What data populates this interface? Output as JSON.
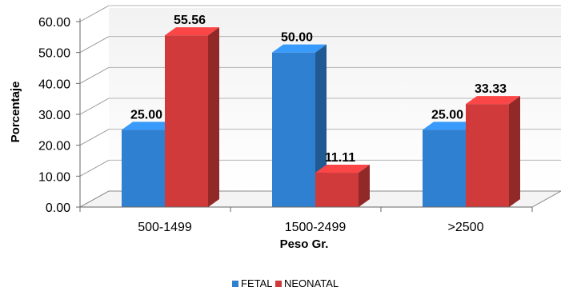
{
  "chart_data": {
    "type": "bar",
    "three_d": true,
    "categories": [
      "500-1499",
      "1500-2499",
      ">2500"
    ],
    "series": [
      {
        "name": "FETAL",
        "values": [
          25.0,
          50.0,
          25.0
        ],
        "labels": [
          "25.00",
          "50.00",
          "25.00"
        ],
        "color": "#2f80d0"
      },
      {
        "name": "NEONATAL",
        "values": [
          55.56,
          11.11,
          33.33
        ],
        "labels": [
          "55.56",
          "11.11",
          "33.33"
        ],
        "color": "#d03a3a"
      }
    ],
    "ylim": [
      0,
      60
    ],
    "yticks": [
      "0.00",
      "10.00",
      "20.00",
      "30.00",
      "40.00",
      "50.00",
      "60.00"
    ],
    "xlabel": "Peso Gr.",
    "ylabel": "Porcentaje",
    "grid": true,
    "legend_position": "bottom"
  }
}
